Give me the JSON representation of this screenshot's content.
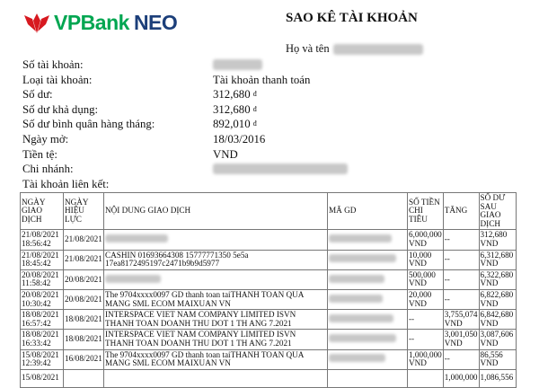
{
  "header": {
    "brand": "VPBank",
    "brand_suffix": "NEO",
    "brand_colors": {
      "red": "#d71920",
      "green": "#00a651",
      "navy": "#1c3f7a"
    },
    "title": "SAO KÊ TÀI KHOẢN",
    "name_label": "Họ và tên"
  },
  "info": [
    {
      "label": "Số tài khoản:",
      "value": "",
      "redacted": true
    },
    {
      "label": "Loại tài khoản:",
      "value": "Tài khoản thanh toán"
    },
    {
      "label": "Số dư:",
      "value": "312,680",
      "unit": "đ"
    },
    {
      "label": "Số dư khả dụng:",
      "value": "312,680",
      "unit": "đ"
    },
    {
      "label": "Số dư bình quân hàng tháng:",
      "value": "892,010",
      "unit": "đ"
    },
    {
      "label": "Ngày mở:",
      "value": "18/03/2016"
    },
    {
      "label": "Tiền tệ:",
      "value": "VND"
    },
    {
      "label": "Chi nhánh:",
      "value": "",
      "redacted": true
    },
    {
      "label": "Tài khoản liên kết:",
      "value": ""
    }
  ],
  "table": {
    "headers": [
      "NGÀY GIAO DỊCH",
      "NGÀY HIỆU LỰC",
      "NỘI DUNG GIAO DỊCH",
      "MÃ GD",
      "SỐ TIỀN CHI TIÊU",
      "TĂNG",
      "SỐ DƯ SAU GIAO DỊCH"
    ],
    "rows": [
      {
        "date": "21/08/2021 18:56:42",
        "eff": "21/08/2021",
        "desc": "",
        "desc_redacted": true,
        "spend": "6,000,000 VND",
        "inc": "--",
        "bal": "312,680 VND"
      },
      {
        "date": "21/08/2021 18:45:42",
        "eff": "21/08/2021",
        "desc": "CASHIN 01693664308 15777771350 5e5a 17ea8172495197c2471b9b9d5977",
        "spend": "10,000 VND",
        "inc": "--",
        "bal": "6,312,680 VND"
      },
      {
        "date": "20/08/2021 11:58:42",
        "eff": "20/08/2021",
        "desc": "",
        "desc_redacted": true,
        "spend": "500,000 VND",
        "inc": "--",
        "bal": "6,322,680 VND"
      },
      {
        "date": "20/08/2021 10:30:42",
        "eff": "20/08/2021",
        "desc": "The 9704xxxx0097 GD thanh toan taiTHANH TOAN QUA MANG SML ECOM MAIXUAN VN",
        "spend": "20,000 VND",
        "inc": "--",
        "bal": "6,822,680 VND"
      },
      {
        "date": "18/08/2021 16:57:42",
        "eff": "18/08/2021",
        "desc": "INTERSPACE VIET NAM COMPANY LIMITED ISVN THANH TOAN DOANH THU DOT 1 TH ANG 7.2021",
        "spend": "--",
        "inc": "3,755,074 VND",
        "bal": "6,842,680 VND"
      },
      {
        "date": "18/08/2021 16:33:42",
        "eff": "18/08/2021",
        "desc": "INTERSPACE VIET NAM COMPANY LIMITED ISVN THANH TOAN DOANH THU DOT 1 TH ANG 7.2021",
        "spend": "--",
        "inc": "3,001,050 VND",
        "bal": "3,087,606 VND"
      },
      {
        "date": "15/08/2021 12:39:42",
        "eff": "16/08/2021",
        "desc": "The 9704xxxx0097 GD thanh toan taiTHANH TOAN QUA MANG SML ECOM MAIXUAN VN",
        "spend": "1,000,000 VND",
        "inc": "--",
        "bal": "86,556 VND"
      },
      {
        "date": "15/08/2021",
        "eff": "",
        "desc": "",
        "spend": "",
        "inc": "1,000,000",
        "bal": "1,086,556"
      }
    ]
  }
}
